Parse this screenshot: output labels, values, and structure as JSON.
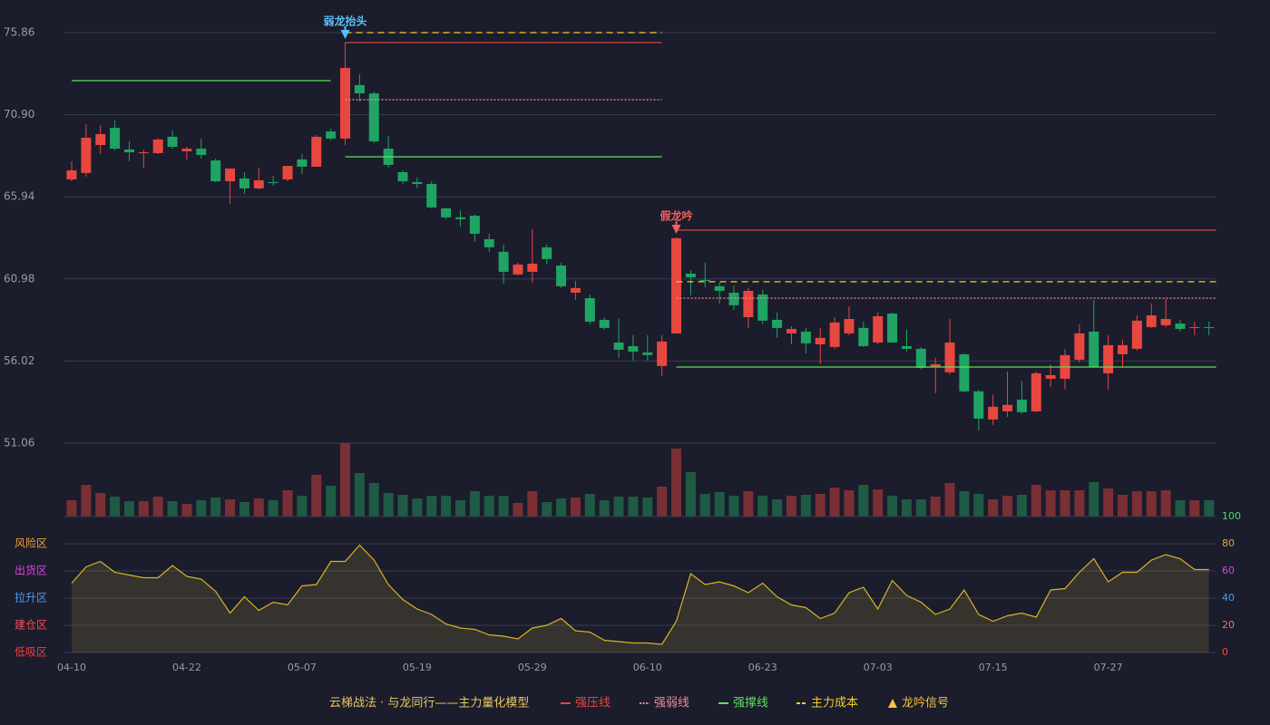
{
  "chart_data": [
    {
      "type": "candlestick",
      "title": "云梯战法 · 与龙同行——主力量化模型",
      "categories": [
        "04-10",
        null,
        null,
        null,
        null,
        null,
        null,
        null,
        "04-22",
        null,
        null,
        null,
        null,
        null,
        null,
        null,
        "05-07",
        null,
        null,
        null,
        null,
        null,
        null,
        null,
        "05-19",
        null,
        null,
        null,
        null,
        null,
        null,
        null,
        "05-29",
        null,
        null,
        null,
        null,
        null,
        null,
        null,
        "06-10",
        null,
        null,
        null,
        null,
        null,
        null,
        null,
        "06-23",
        null,
        null,
        null,
        null,
        null,
        null,
        null,
        "07-03",
        null,
        null,
        null,
        null,
        null,
        null,
        null,
        "07-15",
        null,
        null,
        null,
        null,
        null,
        null,
        null,
        "07-27",
        null,
        null,
        null,
        null,
        null,
        null,
        null
      ],
      "open": [
        66.99,
        67.38,
        69.07,
        70.11,
        68.8,
        68.58,
        68.58,
        69.57,
        68.69,
        68.85,
        68.14,
        66.88,
        67.05,
        66.45,
        66.83,
        66.99,
        68.2,
        67.76,
        69.89,
        69.46,
        72.69,
        72.19,
        68.85,
        67.43,
        66.83,
        66.72,
        65.24,
        64.7,
        64.8,
        63.38,
        62.62,
        61.25,
        61.41,
        62.89,
        61.79,
        60.15,
        59.82,
        58.51,
        57.14,
        56.92,
        56.54,
        55.72,
        57.69,
        61.3,
        60.92,
        60.54,
        60.15,
        58.67,
        60.04,
        58.51,
        57.69,
        57.8,
        57.03,
        56.87,
        57.69,
        58.02,
        57.14,
        58.89,
        56.92,
        56.76,
        55.66,
        55.34,
        56.43,
        54.19,
        52.49,
        52.98,
        53.69,
        52.98,
        54.95,
        54.95,
        56.1,
        57.8,
        55.28,
        56.43,
        56.76,
        58.07,
        58.18,
        58.29,
        58.02,
        58.07
      ],
      "high": [
        68.09,
        70.33,
        70.28,
        70.55,
        69.29,
        68.8,
        69.51,
        69.95,
        68.96,
        69.46,
        68.25,
        67.65,
        67.43,
        67.71,
        67.21,
        67.81,
        68.53,
        69.68,
        70.06,
        75.26,
        73.34,
        72.3,
        69.62,
        67.54,
        67.1,
        66.88,
        65.3,
        65.13,
        64.86,
        63.71,
        63.05,
        61.96,
        63.99,
        63.05,
        61.96,
        60.86,
        60.04,
        58.67,
        58.56,
        57.58,
        57.58,
        57.58,
        63.49,
        61.52,
        61.96,
        60.75,
        60.59,
        60.43,
        60.32,
        58.95,
        58.13,
        58.02,
        58.02,
        58.67,
        59.33,
        58.4,
        58.95,
        58.95,
        57.91,
        56.87,
        56.21,
        58.56,
        56.49,
        54.3,
        53.97,
        55.39,
        54.84,
        55.39,
        55.83,
        56.76,
        58.24,
        59.71,
        57.58,
        57.31,
        58.78,
        59.5,
        59.77,
        58.51,
        58.4,
        58.4
      ],
      "low": [
        66.88,
        67.16,
        68.53,
        68.74,
        68.09,
        67.71,
        68.53,
        68.85,
        68.2,
        68.25,
        66.83,
        65.52,
        66.12,
        66.39,
        66.61,
        66.88,
        67.32,
        67.76,
        69.35,
        69.07,
        71.7,
        69.18,
        67.71,
        66.72,
        66.45,
        65.24,
        64.59,
        64.15,
        63.22,
        62.62,
        60.7,
        61.19,
        60.75,
        61.85,
        60.43,
        59.71,
        58.24,
        57.91,
        56.21,
        56.05,
        56.05,
        55.12,
        57.69,
        59.99,
        60.48,
        59.5,
        59.11,
        58.02,
        58.24,
        57.42,
        57.03,
        56.49,
        55.83,
        56.76,
        57.58,
        56.87,
        57.03,
        57.14,
        56.59,
        55.5,
        54.08,
        55.23,
        54.13,
        51.83,
        52.16,
        52.65,
        52.82,
        52.93,
        54.46,
        54.3,
        55.94,
        55.66,
        54.3,
        55.66,
        56.65,
        58.02,
        58.07,
        57.8,
        57.58,
        57.58
      ],
      "close": [
        67.54,
        69.51,
        69.73,
        68.85,
        68.63,
        68.63,
        69.4,
        68.96,
        68.85,
        68.47,
        66.88,
        67.65,
        66.45,
        66.94,
        66.77,
        67.81,
        67.76,
        69.57,
        69.46,
        73.73,
        72.19,
        69.29,
        67.87,
        66.88,
        66.72,
        65.3,
        64.7,
        64.59,
        63.71,
        62.89,
        61.41,
        61.85,
        61.9,
        62.18,
        60.54,
        60.43,
        58.4,
        58.02,
        56.7,
        56.59,
        56.38,
        57.2,
        63.44,
        61.08,
        60.86,
        60.26,
        59.39,
        60.26,
        58.46,
        58.02,
        57.96,
        57.09,
        57.42,
        58.35,
        58.56,
        56.92,
        58.73,
        57.14,
        56.76,
        55.61,
        55.83,
        57.14,
        54.19,
        52.54,
        53.26,
        53.37,
        52.93,
        55.28,
        55.17,
        56.38,
        57.69,
        55.66,
        56.98,
        56.98,
        58.46,
        58.78,
        58.56,
        57.96,
        58.07,
        58.02
      ],
      "up_color": "#e8473f",
      "down_color": "#1fa463",
      "ylim": [
        51.06,
        75.86
      ],
      "yticks": [
        75.86,
        {
          "value": 70.9,
          "label": "70.90"
        },
        65.94,
        60.98,
        56.02,
        51.06
      ],
      "grid": true,
      "support_segments": [
        {
          "from": 0,
          "to": 18,
          "value": 72.96
        }
      ],
      "signals": [
        {
          "label": "弱龙抬头",
          "color": "#5bc0f8",
          "from": 19,
          "to": 41,
          "levels": [
            75.26,
            71.81,
            68.36,
            75.86
          ]
        },
        {
          "label": "假龙吟",
          "color": "#f06060",
          "from": 42,
          "to": 79,
          "levels": [
            63.93,
            59.82,
            55.66,
            60.81
          ]
        }
      ],
      "legend": [
        {
          "name": "强压线",
          "color": "#e8473f",
          "dash": "solid"
        },
        {
          "name": "强弱线",
          "color": "#f08a9a",
          "dash": "dotted"
        },
        {
          "name": "强撑线",
          "color": "#5ee05e",
          "dash": "solid"
        },
        {
          "name": "主力成本",
          "color": "#f5d020",
          "dash": "dashed"
        },
        {
          "name": "龙吟信号",
          "color": "#f5c542",
          "marker": "triangle"
        }
      ]
    },
    {
      "type": "bar",
      "values": [
        18,
        35,
        26,
        22,
        17,
        17,
        22,
        17,
        14,
        18,
        21,
        19,
        16,
        20,
        18,
        29,
        23,
        46,
        34,
        81,
        48,
        37,
        26,
        24,
        20,
        23,
        23,
        18,
        28,
        23,
        23,
        15,
        28,
        16,
        20,
        21,
        25,
        18,
        22,
        22,
        21,
        33,
        75,
        49,
        25,
        27,
        23,
        28,
        23,
        19,
        23,
        24,
        25,
        32,
        29,
        35,
        30,
        23,
        19,
        19,
        22,
        37,
        28,
        25,
        19,
        23,
        24,
        35,
        29,
        29,
        29,
        38,
        31,
        24,
        28,
        28,
        29,
        18,
        18,
        18
      ],
      "up_color": "#7a2f35",
      "down_color": "#1f5a44",
      "ylim": [
        0,
        81
      ]
    },
    {
      "type": "line",
      "values": [
        51,
        63,
        67,
        59,
        57,
        55,
        55,
        64,
        56,
        54,
        45,
        29,
        41,
        31,
        37,
        35,
        49,
        50,
        67,
        67,
        79,
        68,
        50,
        39,
        32,
        28,
        21,
        18,
        17,
        13,
        12,
        10,
        18,
        20,
        25,
        16,
        15,
        9,
        8,
        7,
        7,
        6,
        23,
        58,
        50,
        52,
        49,
        44,
        51,
        41,
        35,
        33,
        25,
        29,
        44,
        48,
        32,
        53,
        42,
        37,
        28,
        32,
        46,
        28,
        23,
        27,
        29,
        26,
        46,
        47,
        59,
        69,
        52,
        59,
        59,
        68,
        72,
        69,
        61,
        61
      ],
      "color": "#d8b424",
      "ylim": [
        0,
        100
      ],
      "yticks": [
        0,
        20,
        40,
        60,
        80,
        100
      ],
      "ytick_colors": [
        "#f04848",
        "#f07840",
        "#4a9ef5",
        "#e040e0",
        "#f0a030",
        "#40e060"
      ],
      "grid": true,
      "zones": [
        {
          "label": "风险区",
          "value": 80,
          "color": "#f0a030"
        },
        {
          "label": "出货区",
          "value": 60,
          "color": "#e040e0"
        },
        {
          "label": "拉升区",
          "value": 40,
          "color": "#4a9ef5"
        },
        {
          "label": "建仓区",
          "value": 20,
          "color": "#f05050"
        },
        {
          "label": "低吸区",
          "value": 0,
          "color": "#f04040"
        }
      ]
    }
  ]
}
